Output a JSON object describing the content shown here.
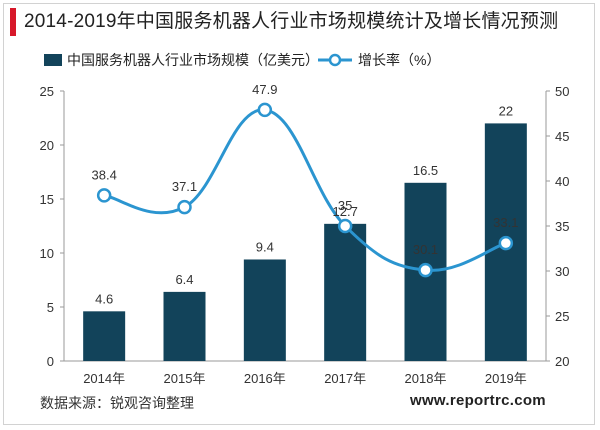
{
  "title": "2014-2019年中国服务机器人行业市场规模统计及增长情况预测",
  "source": "数据来源：锐观咨询整理",
  "website": "www.reportrc.com",
  "colors": {
    "bar": "#12435a",
    "line": "#2b95d0",
    "accent": "#d7182a"
  },
  "chart_data": {
    "type": "bar",
    "categories": [
      "2014年",
      "2015年",
      "2016年",
      "2017年",
      "2018年",
      "2019年"
    ],
    "series": [
      {
        "name": "中国服务机器人行业市场规模（亿美元）",
        "type": "bar",
        "axis": "left",
        "values": [
          4.6,
          6.4,
          9.4,
          12.7,
          16.5,
          22
        ],
        "labels": [
          "4.6",
          "6.4",
          "9.4",
          "12.7",
          "16.5",
          "22"
        ]
      },
      {
        "name": "增长率（%）",
        "type": "line",
        "axis": "right",
        "values": [
          38.4,
          37.1,
          47.9,
          35,
          30.1,
          33.1
        ],
        "labels": [
          "38.4",
          "37.1",
          "47.9",
          "35",
          "30.1",
          "33.1"
        ]
      }
    ],
    "y_left": {
      "ylim": [
        0,
        25
      ],
      "ticks": [
        "0",
        "5",
        "10",
        "15",
        "20",
        "25"
      ]
    },
    "y_right": {
      "ylim": [
        20,
        50
      ],
      "ticks": [
        "20",
        "25",
        "30",
        "35",
        "40",
        "45",
        "50"
      ]
    },
    "legend_position": "top",
    "grid": false
  }
}
